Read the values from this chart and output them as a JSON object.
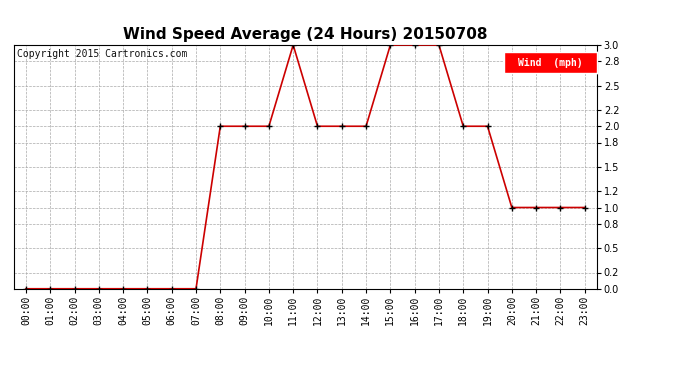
{
  "title": "Wind Speed Average (24 Hours) 20150708",
  "copyright_text": "Copyright 2015 Cartronics.com",
  "legend_label": "Wind  (mph)",
  "legend_bg": "#ff0000",
  "legend_text_color": "#ffffff",
  "x_labels": [
    "00:00",
    "01:00",
    "02:00",
    "03:00",
    "04:00",
    "05:00",
    "06:00",
    "07:00",
    "08:00",
    "09:00",
    "10:00",
    "11:00",
    "12:00",
    "13:00",
    "14:00",
    "15:00",
    "16:00",
    "17:00",
    "18:00",
    "19:00",
    "20:00",
    "21:00",
    "22:00",
    "23:00"
  ],
  "y_values": [
    0.0,
    0.0,
    0.0,
    0.0,
    0.0,
    0.0,
    0.0,
    0.0,
    2.0,
    2.0,
    2.0,
    3.0,
    2.0,
    2.0,
    2.0,
    3.0,
    3.0,
    3.0,
    2.0,
    2.0,
    1.0,
    1.0,
    1.0,
    1.0
  ],
  "line_color": "#cc0000",
  "marker_color": "#000000",
  "bg_color": "#ffffff",
  "plot_bg_color": "#ffffff",
  "grid_color": "#aaaaaa",
  "ylim": [
    0.0,
    3.0
  ],
  "yticks": [
    0.0,
    0.2,
    0.5,
    0.8,
    1.0,
    1.2,
    1.5,
    1.8,
    2.0,
    2.2,
    2.5,
    2.8,
    3.0
  ],
  "title_fontsize": 11,
  "axis_label_fontsize": 7,
  "copyright_fontsize": 7
}
